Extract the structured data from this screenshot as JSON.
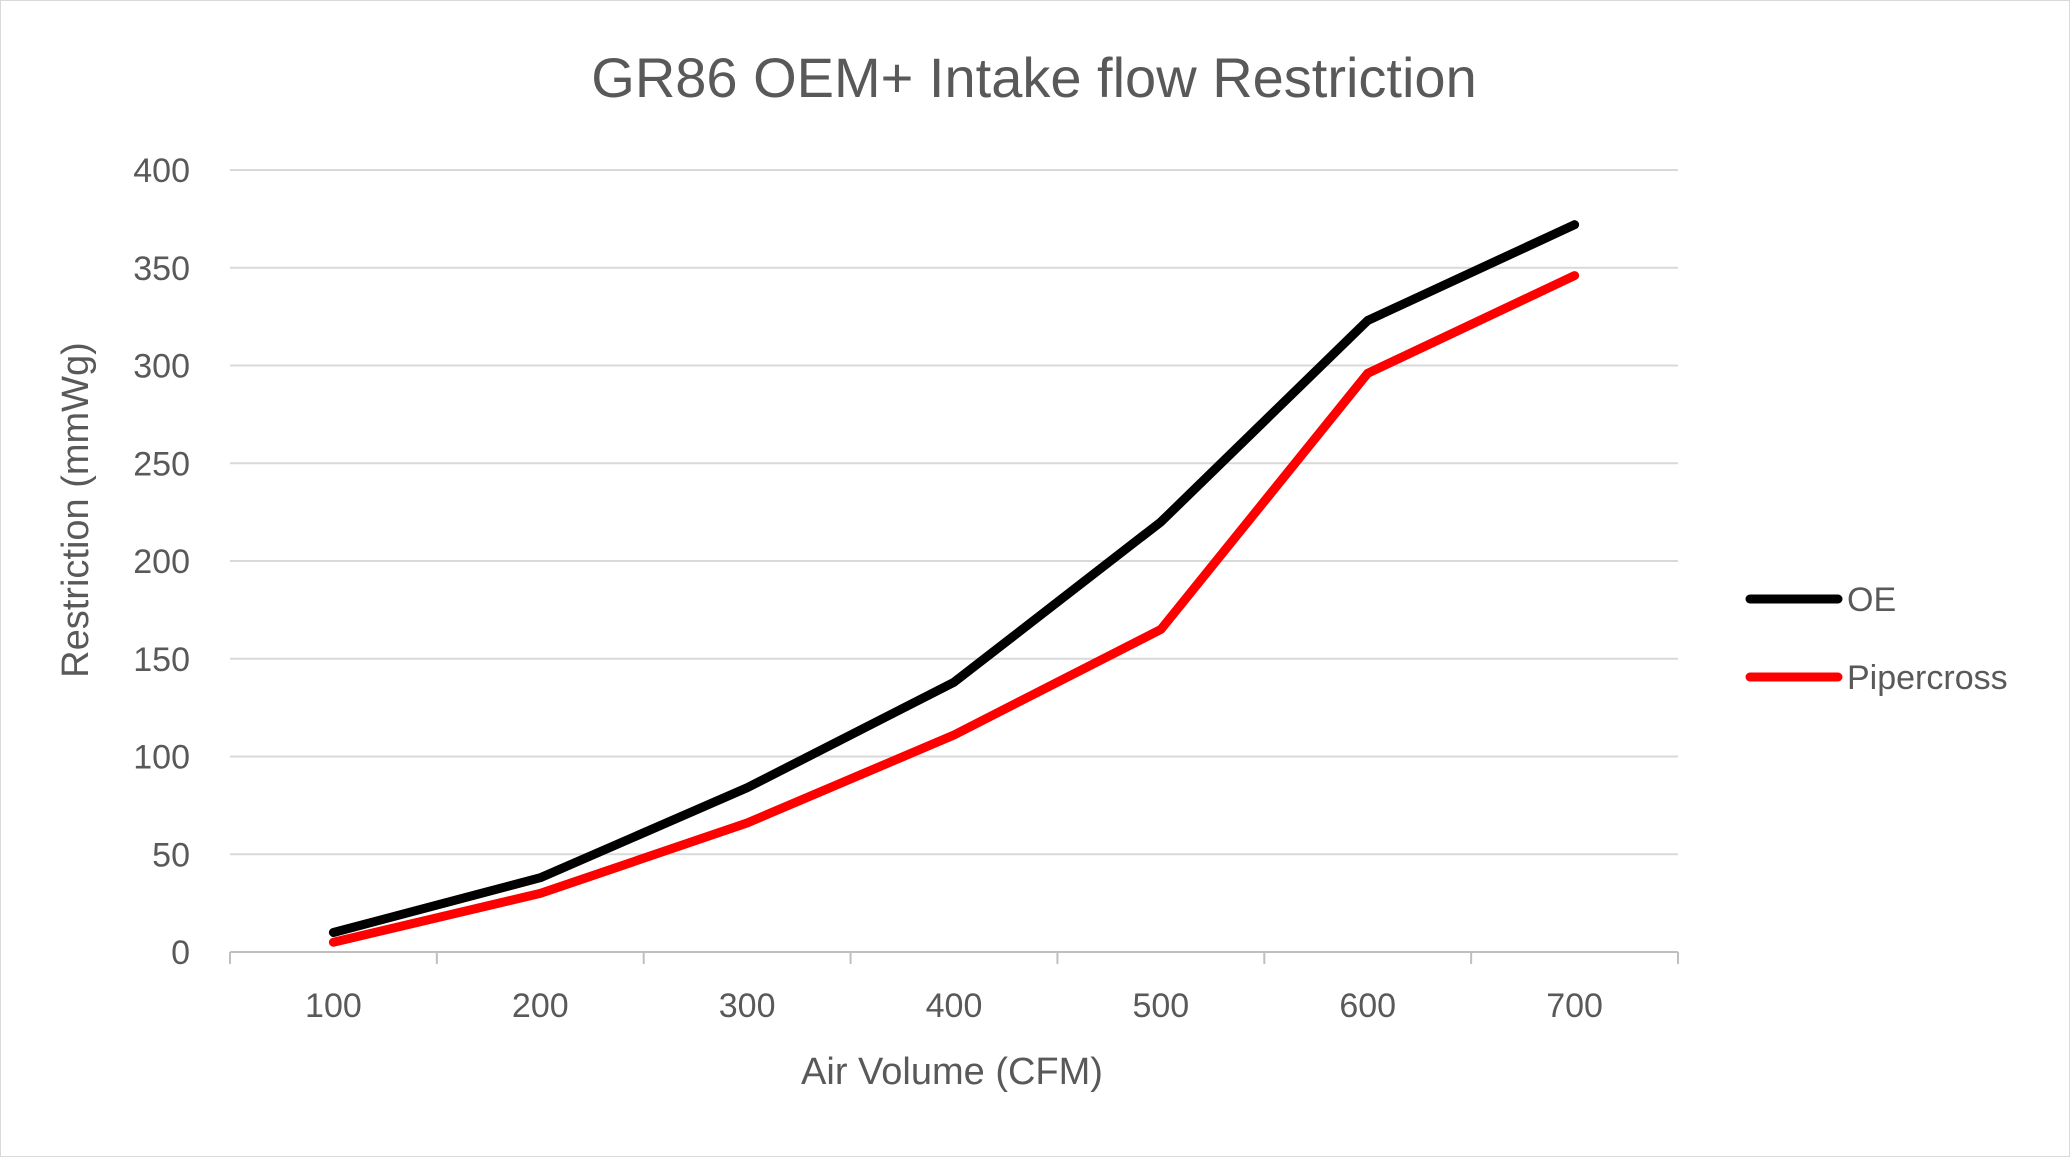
{
  "chart_data": {
    "type": "line",
    "title": "GR86 OEM+ Intake flow Restriction",
    "xlabel": "Air Volume (CFM)",
    "ylabel": "Restriction (mmWg)",
    "categories": [
      "100",
      "200",
      "300",
      "400",
      "500",
      "600",
      "700"
    ],
    "x": [
      100,
      200,
      300,
      400,
      500,
      600,
      700
    ],
    "ylim": [
      0,
      400
    ],
    "yticks": [
      "0",
      "50",
      "100",
      "150",
      "200",
      "250",
      "300",
      "350",
      "400"
    ],
    "grid": true,
    "legend_position": "right",
    "series": [
      {
        "name": "OE",
        "color": "#000000",
        "values": [
          10,
          38,
          84,
          138,
          220,
          323,
          372
        ]
      },
      {
        "name": "Pipercross",
        "color": "#ff0000",
        "values": [
          5,
          30,
          66,
          111,
          165,
          296,
          346
        ]
      }
    ]
  }
}
